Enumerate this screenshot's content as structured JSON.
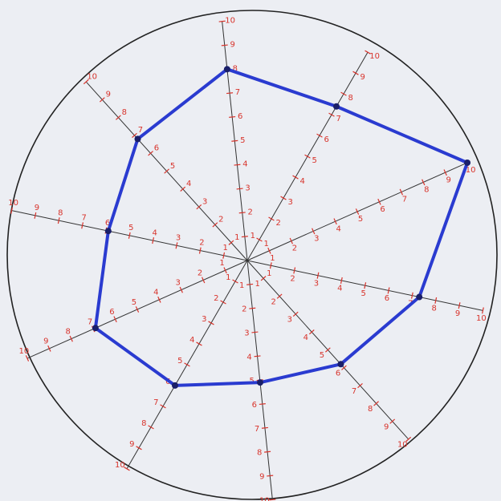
{
  "chart_data": {
    "type": "radar",
    "categories": [
      null,
      null,
      null,
      null,
      null,
      null,
      null,
      null,
      null,
      null
    ],
    "values": [
      8,
      7.4,
      10,
      7.3,
      5.8,
      5.1,
      6,
      6.9,
      5.9,
      6.8
    ],
    "color": "#2a3bd0",
    "rlim": [
      0,
      10
    ],
    "rticks": [
      1,
      2,
      3,
      4,
      5,
      6,
      7,
      8,
      9,
      10
    ],
    "tick_color": "#d8342c"
  }
}
